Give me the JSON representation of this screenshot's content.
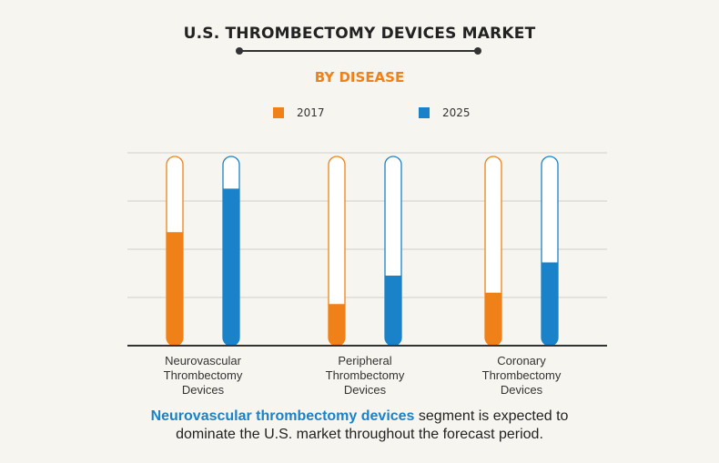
{
  "title": "U.S. THROMBECTOMY DEVICES MARKET",
  "subtitle": "BY DISEASE",
  "colors": {
    "c2017": "#f08118",
    "c2025": "#1a82c8",
    "accent": "#f08118",
    "highlight": "#1a82c8",
    "grid": "#d2cfc8"
  },
  "footnote": {
    "highlight": "Neurovascular thrombectomy devices",
    "rest": " segment is expected to",
    "line2": "dominate the U.S. market throughout the forecast period."
  },
  "chart_data": {
    "type": "bar",
    "title": "U.S. THROMBECTOMY DEVICES MARKET",
    "subtitle": "BY DISEASE",
    "categories": [
      "Neurovascular Thrombectomy Devices",
      "Peripheral Thrombectomy Devices",
      "Coronary Thrombectomy Devices"
    ],
    "category_lines": [
      [
        "Neurovascular",
        "Thrombectomy",
        "Devices"
      ],
      [
        "Peripheral",
        "Thrombectomy",
        "Devices"
      ],
      [
        "Coronary",
        "Thrombectomy",
        "Devices"
      ]
    ],
    "series": [
      {
        "name": "2017",
        "values": [
          0.6,
          0.22,
          0.28
        ]
      },
      {
        "name": "2025",
        "values": [
          0.83,
          0.37,
          0.44
        ]
      }
    ],
    "ylim": [
      0,
      1
    ],
    "grid": true,
    "legend": "top-center",
    "xlabel": "",
    "ylabel": ""
  }
}
